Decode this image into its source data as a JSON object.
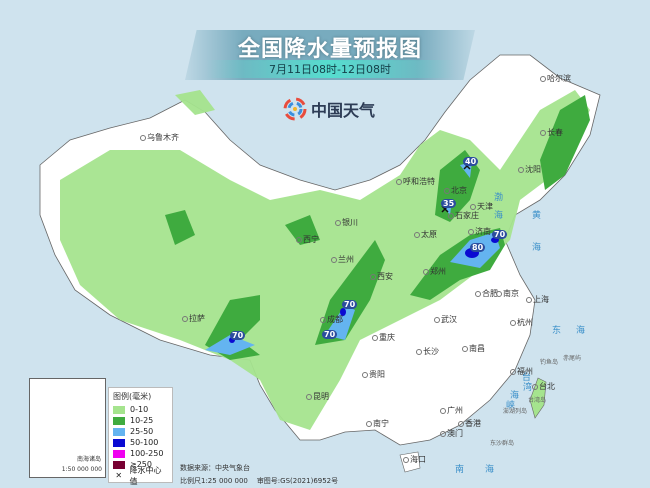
{
  "header": {
    "title": "全国降水量预报图",
    "subtitle": "7月11日08时-12日08时",
    "logo_text": "中国天气"
  },
  "colors": {
    "ocean": "#cfe3ee",
    "land": "#ffffff",
    "r0_10": "#a5e48e",
    "r10_25": "#3fab3f",
    "r25_50": "#64b4f0",
    "r50_100": "#0a0ad2",
    "r100_250": "#f000f0",
    "r250": "#780032"
  },
  "legend": {
    "title": "图例(毫米)",
    "items": [
      {
        "label": "0-10",
        "color": "#a5e48e"
      },
      {
        "label": "10-25",
        "color": "#3fab3f"
      },
      {
        "label": "25-50",
        "color": "#64b4f0"
      },
      {
        "label": "50-100",
        "color": "#0a0ad2"
      },
      {
        "label": "100-250",
        "color": "#f000f0"
      },
      {
        "label": "≥250",
        "color": "#780032"
      }
    ],
    "center_label": "降水中心值",
    "center_icon": "x-mark-icon"
  },
  "centers": [
    {
      "value": "40"
    },
    {
      "value": "35"
    },
    {
      "value": "80"
    },
    {
      "value": "70"
    },
    {
      "value": "70"
    },
    {
      "value": "70"
    },
    {
      "value": "70"
    }
  ],
  "cities": [
    "乌鲁木齐",
    "哈尔滨",
    "长春",
    "沈阳",
    "呼和浩特",
    "北京",
    "天津",
    "石家庄",
    "太原",
    "银川",
    "西宁",
    "兰州",
    "西安",
    "济南",
    "郑州",
    "合肥",
    "南京",
    "上海",
    "武汉",
    "杭州",
    "成都",
    "重庆",
    "拉萨",
    "长沙",
    "南昌",
    "福州",
    "台北",
    "贵阳",
    "昆明",
    "南宁",
    "广州",
    "香港",
    "澳门",
    "海口"
  ],
  "seas": [
    "渤",
    "海",
    "黄",
    "海",
    "东",
    "海",
    "台",
    "湾",
    "海",
    "峡",
    "南",
    "海"
  ],
  "islands": [
    "钓鱼岛",
    "赤尾屿",
    "台湾岛",
    "澎湖列岛",
    "东沙群岛"
  ],
  "inset": {
    "title": "南海诸岛",
    "scale": "1:50 000 000"
  },
  "footer": {
    "source": "数据来源：中央气象台",
    "scale": "比例尺1:25 000 000",
    "approval": "审图号:GS(2021)6952号"
  }
}
